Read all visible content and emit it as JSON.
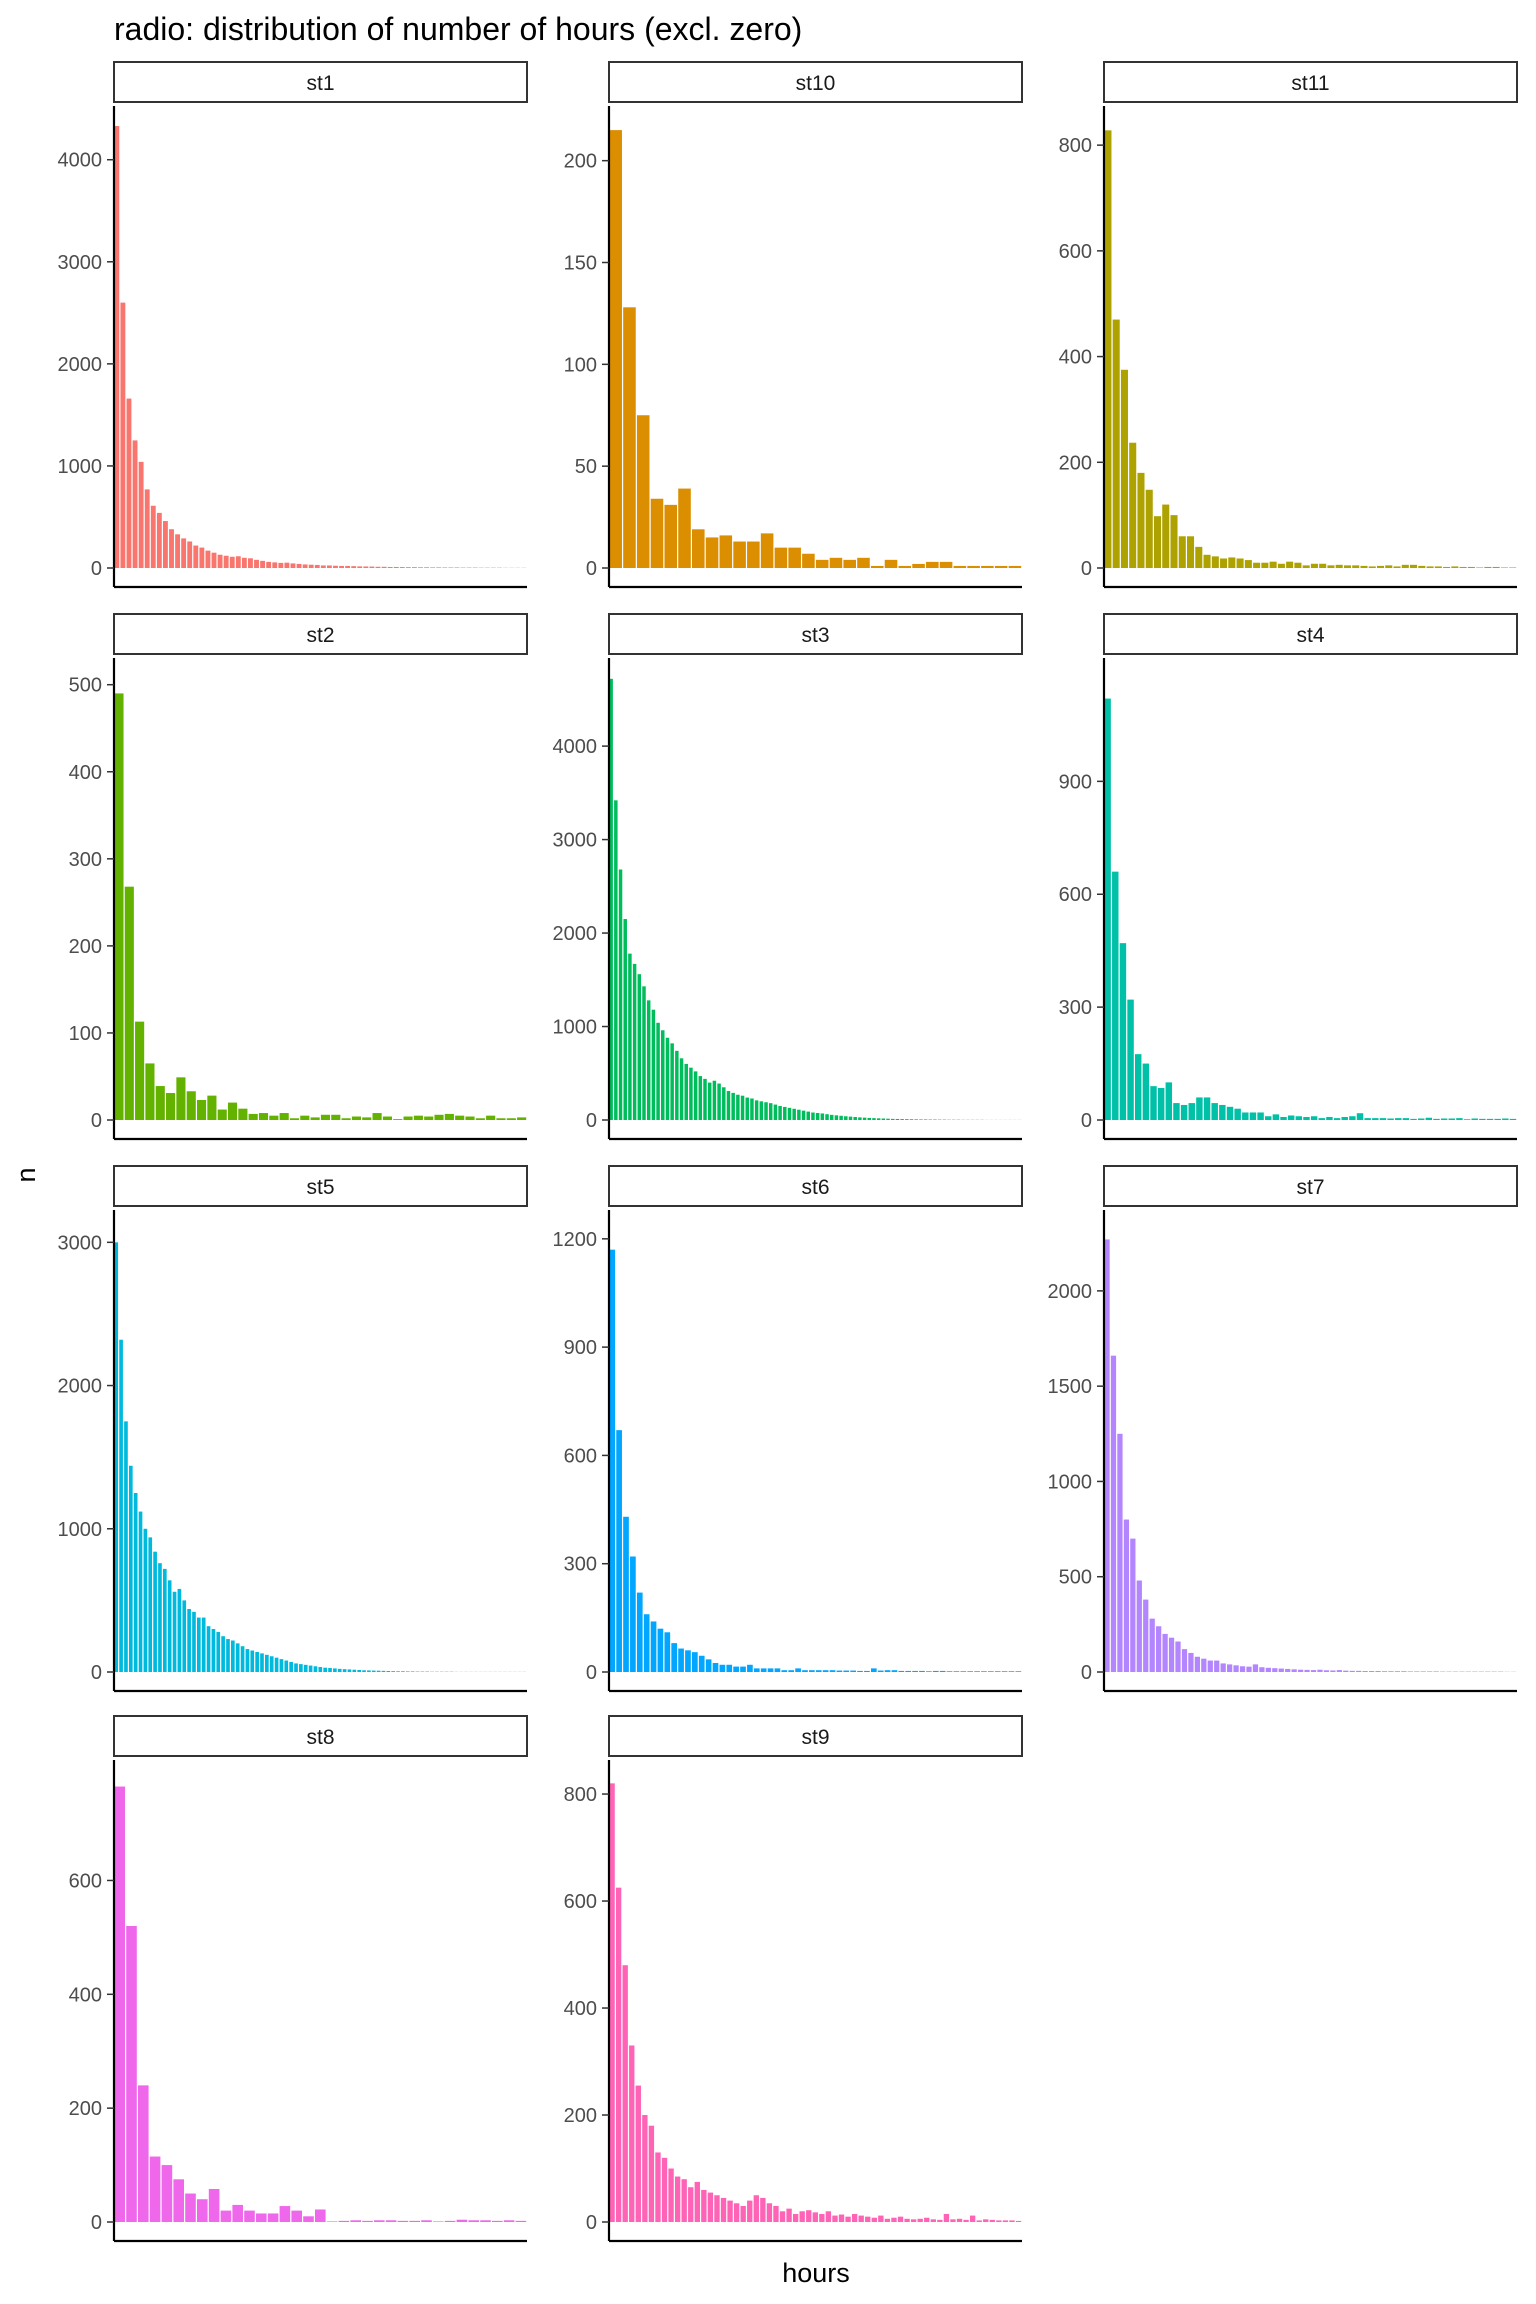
{
  "chart_data": {
    "type": "bar",
    "title": "radio: distribution of number of hours (excl. zero)",
    "xlabel": "hours",
    "ylabel": "n",
    "grid": false,
    "legend": "none",
    "panels": [
      {
        "name": "st1",
        "color": "#F8766D",
        "yticks": [
          0,
          1000,
          2000,
          3000,
          4000
        ],
        "ylim": [
          0,
          4350
        ],
        "values": [
          4330,
          2600,
          1660,
          1250,
          1040,
          770,
          610,
          540,
          460,
          380,
          330,
          290,
          260,
          220,
          200,
          170,
          150,
          130,
          120,
          110,
          115,
          100,
          95,
          80,
          70,
          60,
          55,
          50,
          52,
          45,
          40,
          35,
          32,
          30,
          25,
          25,
          22,
          20,
          20,
          18,
          16,
          15,
          14,
          12,
          12,
          10,
          10,
          9,
          8,
          8,
          7,
          7,
          6,
          6,
          5,
          5,
          5,
          4,
          4,
          4,
          3,
          3,
          3,
          3,
          2,
          2,
          2,
          2
        ]
      },
      {
        "name": "st10",
        "color": "#DB8E00",
        "yticks": [
          0,
          50,
          100,
          150,
          200
        ],
        "ylim": [
          0,
          218
        ],
        "values": [
          215,
          128,
          75,
          34,
          31,
          39,
          19,
          15,
          16,
          13,
          13,
          17,
          10,
          10,
          7,
          4,
          5,
          4,
          5,
          1,
          4,
          1,
          2,
          3,
          3,
          1,
          1,
          1,
          1,
          1
        ]
      },
      {
        "name": "st11",
        "color": "#AEA200",
        "yticks": [
          0,
          200,
          400,
          600,
          800
        ],
        "ylim": [
          0,
          840
        ],
        "values": [
          828,
          470,
          375,
          237,
          180,
          148,
          98,
          120,
          100,
          60,
          60,
          40,
          25,
          22,
          18,
          20,
          18,
          15,
          10,
          10,
          12,
          8,
          12,
          10,
          5,
          8,
          8,
          5,
          6,
          5,
          5,
          4,
          3,
          4,
          5,
          3,
          6,
          6,
          4,
          3,
          3,
          2,
          3,
          2,
          2,
          1,
          2,
          2,
          1,
          1
        ]
      },
      {
        "name": "st2",
        "color": "#64B200",
        "yticks": [
          0,
          100,
          200,
          300,
          400,
          500
        ],
        "ylim": [
          0,
          510
        ],
        "values": [
          490,
          268,
          113,
          65,
          39,
          31,
          49,
          33,
          23,
          28,
          12,
          20,
          13,
          7,
          8,
          5,
          8,
          2,
          5,
          3,
          6,
          6,
          2,
          4,
          3,
          8,
          4,
          1,
          4,
          5,
          4,
          6,
          7,
          5,
          4,
          2,
          5,
          2,
          2,
          3
        ]
      },
      {
        "name": "st3",
        "color": "#00BD5C",
        "yticks": [
          0,
          1000,
          2000,
          3000,
          4000
        ],
        "ylim": [
          0,
          4750
        ],
        "values": [
          4720,
          3420,
          2680,
          2150,
          1780,
          1670,
          1560,
          1430,
          1280,
          1180,
          1040,
          960,
          880,
          820,
          740,
          660,
          600,
          560,
          520,
          470,
          440,
          400,
          420,
          390,
          350,
          310,
          290,
          270,
          260,
          240,
          230,
          210,
          200,
          190,
          180,
          165,
          150,
          140,
          130,
          120,
          110,
          100,
          90,
          80,
          75,
          70,
          62,
          55,
          50,
          45,
          40,
          36,
          32,
          28,
          25,
          22,
          20,
          18,
          16,
          14,
          12,
          11,
          10,
          9,
          8,
          7,
          6,
          6,
          5,
          5,
          4,
          4,
          3,
          3,
          3,
          2,
          2,
          2,
          2,
          2,
          1,
          1,
          1,
          1,
          1,
          1,
          1,
          1
        ]
      },
      {
        "name": "st4",
        "color": "#00C1A7",
        "yticks": [
          0,
          300,
          600,
          900
        ],
        "ylim": [
          0,
          1180
        ],
        "values": [
          1120,
          660,
          470,
          320,
          175,
          150,
          90,
          85,
          100,
          45,
          40,
          45,
          60,
          60,
          45,
          40,
          35,
          30,
          20,
          20,
          20,
          10,
          15,
          8,
          12,
          10,
          8,
          10,
          5,
          8,
          5,
          8,
          10,
          18,
          5,
          5,
          5,
          4,
          5,
          5,
          3,
          4,
          6,
          3,
          4,
          4,
          5,
          2,
          4,
          3,
          3,
          3,
          4,
          3
        ]
      },
      {
        "name": "st5",
        "color": "#00BADE",
        "yticks": [
          0,
          1000,
          2000,
          3000
        ],
        "ylim": [
          0,
          3100
        ],
        "values": [
          3000,
          2320,
          1750,
          1440,
          1250,
          1120,
          1000,
          940,
          840,
          760,
          720,
          640,
          560,
          580,
          500,
          440,
          420,
          380,
          380,
          320,
          300,
          280,
          250,
          230,
          220,
          200,
          180,
          160,
          150,
          140,
          130,
          120,
          110,
          100,
          90,
          80,
          70,
          60,
          55,
          50,
          45,
          40,
          35,
          30,
          28,
          25,
          22,
          20,
          18,
          16,
          14,
          12,
          11,
          10,
          9,
          8,
          7,
          6,
          5,
          5,
          4,
          4,
          3,
          3,
          3,
          2,
          2,
          2,
          2,
          2,
          1,
          1,
          1,
          1,
          1,
          1,
          1,
          1,
          1,
          1,
          1,
          1,
          1,
          1,
          1
        ]
      },
      {
        "name": "st6",
        "color": "#00A6FF",
        "yticks": [
          0,
          300,
          600,
          900,
          1200
        ],
        "ylim": [
          0,
          1230
        ],
        "values": [
          1170,
          670,
          430,
          320,
          220,
          160,
          140,
          120,
          110,
          80,
          65,
          60,
          55,
          45,
          35,
          25,
          20,
          20,
          15,
          15,
          20,
          10,
          10,
          10,
          10,
          5,
          5,
          10,
          5,
          5,
          5,
          5,
          5,
          4,
          4,
          4,
          3,
          3,
          10,
          4,
          5,
          5,
          3,
          3,
          3,
          3,
          2,
          3,
          3,
          2,
          2,
          2,
          2,
          2,
          2,
          2,
          2,
          2,
          2,
          2
        ]
      },
      {
        "name": "st7",
        "color": "#B385FF",
        "yticks": [
          0,
          500,
          1000,
          1500,
          2000
        ],
        "ylim": [
          0,
          2330
        ],
        "values": [
          2270,
          1660,
          1250,
          800,
          700,
          480,
          380,
          280,
          240,
          200,
          180,
          160,
          120,
          100,
          80,
          70,
          60,
          60,
          45,
          40,
          35,
          30,
          28,
          40,
          25,
          22,
          20,
          18,
          16,
          14,
          12,
          11,
          10,
          12,
          9,
          8,
          10,
          7,
          6,
          6,
          5,
          5,
          5,
          4,
          4,
          4,
          4,
          3,
          3,
          3,
          3,
          3,
          2,
          2,
          2,
          2,
          2,
          2,
          2,
          2,
          2,
          2,
          1,
          1
        ]
      },
      {
        "name": "st8",
        "color": "#EF67EB",
        "yticks": [
          0,
          200,
          400,
          600
        ],
        "ylim": [
          0,
          780
        ],
        "values": [
          765,
          520,
          240,
          115,
          100,
          75,
          50,
          40,
          58,
          20,
          30,
          20,
          15,
          15,
          28,
          20,
          10,
          22,
          1,
          2,
          3,
          2,
          3,
          3,
          2,
          2,
          3,
          1,
          2,
          4,
          3,
          3,
          2,
          3,
          2
        ]
      },
      {
        "name": "st9",
        "color": "#FF63B6",
        "yticks": [
          0,
          200,
          400,
          600,
          800
        ],
        "ylim": [
          0,
          830
        ],
        "values": [
          820,
          625,
          480,
          330,
          255,
          200,
          180,
          130,
          120,
          100,
          85,
          80,
          65,
          75,
          60,
          55,
          50,
          45,
          40,
          35,
          30,
          40,
          50,
          45,
          35,
          30,
          20,
          25,
          15,
          20,
          22,
          18,
          15,
          20,
          12,
          14,
          10,
          15,
          12,
          10,
          8,
          12,
          6,
          8,
          10,
          6,
          5,
          6,
          8,
          5,
          4,
          15,
          5,
          6,
          4,
          12,
          3,
          5,
          4,
          3,
          3,
          3,
          2
        ]
      }
    ]
  }
}
